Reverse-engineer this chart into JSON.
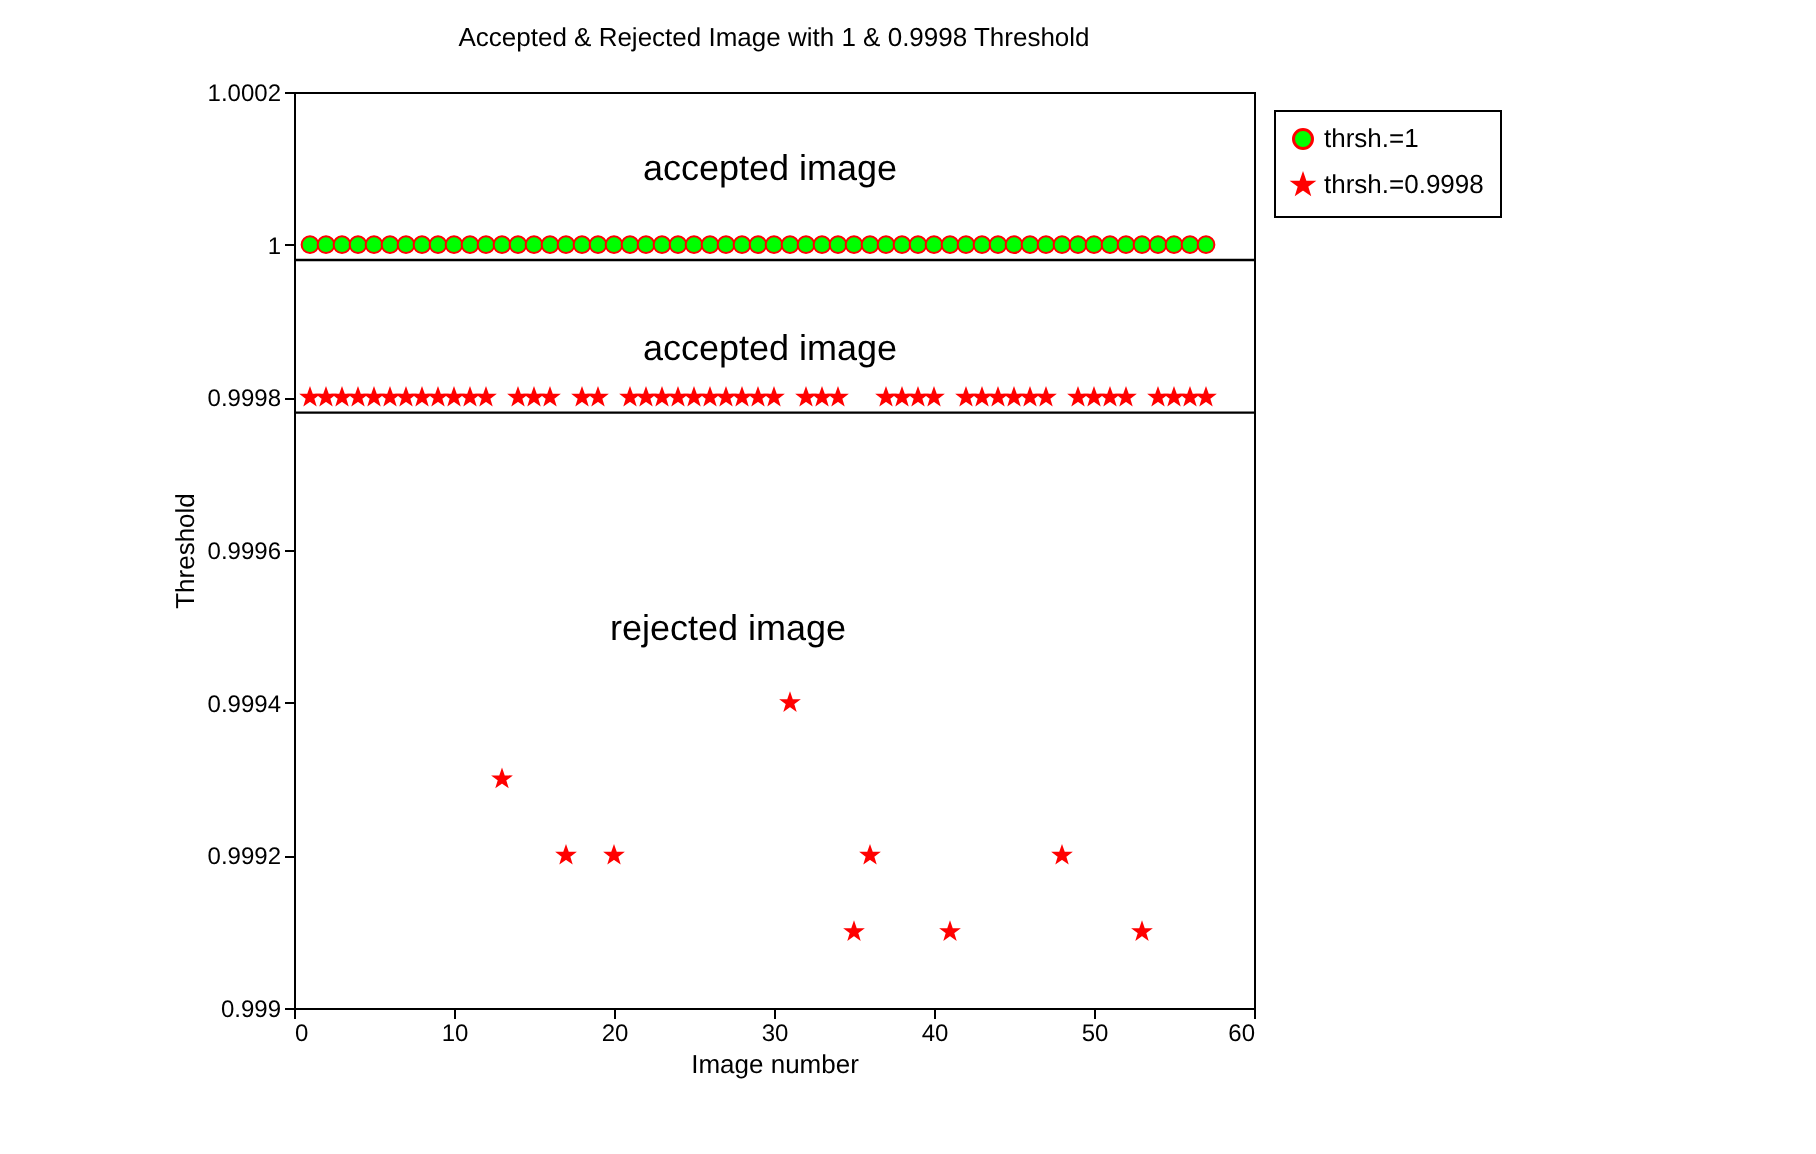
{
  "chart_data": {
    "type": "scatter",
    "title": "Accepted & Rejected Image with 1 & 0.9998 Threshold",
    "xlabel": "Image number",
    "ylabel": "Threshold",
    "x": [
      1,
      2,
      3,
      4,
      5,
      6,
      7,
      8,
      9,
      10,
      11,
      12,
      13,
      14,
      15,
      16,
      17,
      18,
      19,
      20,
      21,
      22,
      23,
      24,
      25,
      26,
      27,
      28,
      29,
      30,
      31,
      32,
      33,
      34,
      35,
      36,
      37,
      38,
      39,
      40,
      41,
      42,
      43,
      44,
      45,
      46,
      47,
      48,
      49,
      50,
      51,
      52,
      53,
      54,
      55,
      56,
      57
    ],
    "series": [
      {
        "name": "thrsh.=1",
        "color": "#00ff00",
        "marker": "circle",
        "values": [
          1,
          1,
          1,
          1,
          1,
          1,
          1,
          1,
          1,
          1,
          1,
          1,
          1,
          1,
          1,
          1,
          1,
          1,
          1,
          1,
          1,
          1,
          1,
          1,
          1,
          1,
          1,
          1,
          1,
          1,
          1,
          1,
          1,
          1,
          1,
          1,
          1,
          1,
          1,
          1,
          1,
          1,
          1,
          1,
          1,
          1,
          1,
          1,
          1,
          1,
          1,
          1,
          1,
          1,
          1,
          1,
          1
        ]
      },
      {
        "name": "thrsh.=0.9998",
        "color": "#ff0000",
        "marker": "star",
        "values": [
          0.9998,
          0.9998,
          0.9998,
          0.9998,
          0.9998,
          0.9998,
          0.9998,
          0.9998,
          0.9998,
          0.9998,
          0.9998,
          0.9998,
          0.9993,
          0.9998,
          0.9998,
          0.9998,
          0.9992,
          0.9998,
          0.9998,
          0.9992,
          0.9998,
          0.9998,
          0.9998,
          0.9998,
          0.9998,
          0.9998,
          0.9998,
          0.9998,
          0.9998,
          0.9998,
          0.9994,
          0.9998,
          0.9998,
          0.9998,
          0.9991,
          0.9992,
          0.9998,
          0.9998,
          0.9998,
          0.9998,
          0.9991,
          0.9998,
          0.9998,
          0.9998,
          0.9998,
          0.9998,
          0.9998,
          0.9992,
          0.9998,
          0.9998,
          0.9998,
          0.9998,
          0.9991,
          0.9998,
          0.9998,
          0.9998,
          0.9998
        ]
      }
    ],
    "xlim": [
      0,
      60
    ],
    "xticks": [
      0,
      10,
      20,
      30,
      40,
      50,
      60
    ],
    "ylim": [
      0.999,
      1.0002
    ],
    "yticks": [
      0.999,
      0.9992,
      0.9994,
      0.9996,
      0.9998,
      1,
      1.0002
    ],
    "ref_lines": [
      {
        "axis": "y",
        "value": 0.99998,
        "color": "#000000"
      },
      {
        "axis": "y",
        "value": 0.99978,
        "color": "#000000"
      }
    ],
    "annotations": [
      "accepted image",
      "accepted image",
      "rejected image"
    ],
    "grid": false,
    "legend": "top right"
  }
}
